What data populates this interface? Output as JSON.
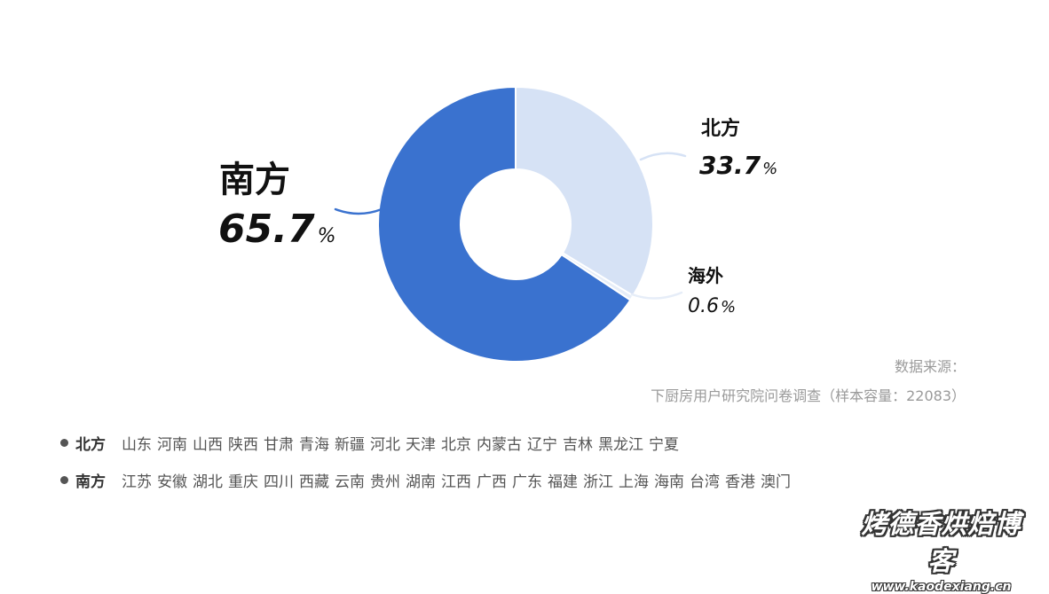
{
  "chart_data": {
    "type": "donut",
    "slices": [
      {
        "label": "北方",
        "value": 33.7,
        "display": "33.7",
        "color": "#d6e2f5"
      },
      {
        "label": "海外",
        "value": 0.6,
        "display": "0.6",
        "color": "#e6edf8"
      },
      {
        "label": "南方",
        "value": 65.7,
        "display": "65.7",
        "color": "#3a72cf"
      }
    ],
    "unit": "%",
    "start_angle_deg": 0,
    "direction": "clockwise"
  },
  "source": {
    "line1": "数据来源：",
    "line2": "下厨房用户研究院问卷调查（样本容量：22083）"
  },
  "regions": {
    "north": {
      "title": "北方",
      "provinces": [
        "山东",
        "河南",
        "山西",
        "陕西",
        "甘肃",
        "青海",
        "新疆",
        "河北",
        "天津",
        "北京",
        "内蒙古",
        "辽宁",
        "吉林",
        "黑龙江",
        "宁夏"
      ]
    },
    "south": {
      "title": "南方",
      "provinces": [
        "江苏",
        "安徽",
        "湖北",
        "重庆",
        "四川",
        "西藏",
        "云南",
        "贵州",
        "湖南",
        "江西",
        "广西",
        "广东",
        "福建",
        "浙江",
        "上海",
        "海南",
        "台湾",
        "香港",
        "澳门"
      ]
    }
  },
  "watermark": {
    "name": "烤德香烘焙博客",
    "url": "www.kaodexiang.cn"
  }
}
